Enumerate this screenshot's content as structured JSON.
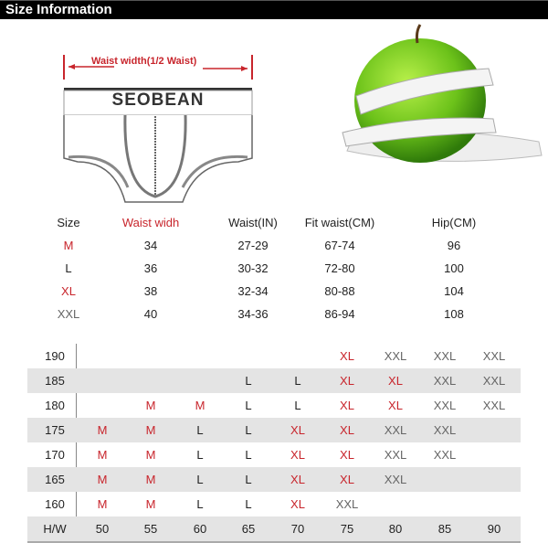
{
  "header": {
    "title": "Size Information"
  },
  "diagram": {
    "measure_label": "Waist width(1/2 Waist)",
    "brand": "SEOBEAN"
  },
  "colors": {
    "red": "#c8252c",
    "black": "#222222",
    "gray": "#666666",
    "stripe": "#e4e4e4"
  },
  "size_table": {
    "headers": [
      "Size",
      "Waist widh",
      "Waist(IN)",
      "Fit waist(CM)",
      "Hip(CM)"
    ],
    "rows": [
      [
        "M",
        "34",
        "27-29",
        "67-74",
        "96"
      ],
      [
        "L",
        "36",
        "30-32",
        "72-80",
        "100"
      ],
      [
        "XL",
        "38",
        "32-34",
        "80-88",
        "104"
      ],
      [
        "XXL",
        "40",
        "34-36",
        "86-94",
        "108"
      ]
    ]
  },
  "hw_table": {
    "corner": "H/W",
    "weights": [
      "50",
      "55",
      "60",
      "65",
      "70",
      "75",
      "80",
      "85",
      "90"
    ],
    "rows": [
      {
        "height": "190",
        "cells": [
          "",
          "",
          "",
          "",
          "",
          "XL",
          "XXL",
          "XXL",
          "XXL"
        ]
      },
      {
        "height": "185",
        "cells": [
          "",
          "",
          "",
          "L",
          "L",
          "XL",
          "XL",
          "XXL",
          "XXL"
        ]
      },
      {
        "height": "180",
        "cells": [
          "",
          "M",
          "M",
          "L",
          "L",
          "XL",
          "XL",
          "XXL",
          "XXL"
        ]
      },
      {
        "height": "175",
        "cells": [
          "M",
          "M",
          "L",
          "L",
          "XL",
          "XL",
          "XXL",
          "XXL",
          ""
        ]
      },
      {
        "height": "170",
        "cells": [
          "M",
          "M",
          "L",
          "L",
          "XL",
          "XL",
          "XXL",
          "XXL",
          ""
        ]
      },
      {
        "height": "165",
        "cells": [
          "M",
          "M",
          "L",
          "L",
          "XL",
          "XL",
          "XXL",
          "",
          ""
        ]
      },
      {
        "height": "160",
        "cells": [
          "M",
          "M",
          "L",
          "L",
          "XL",
          "XXL",
          "",
          "",
          ""
        ]
      }
    ]
  }
}
